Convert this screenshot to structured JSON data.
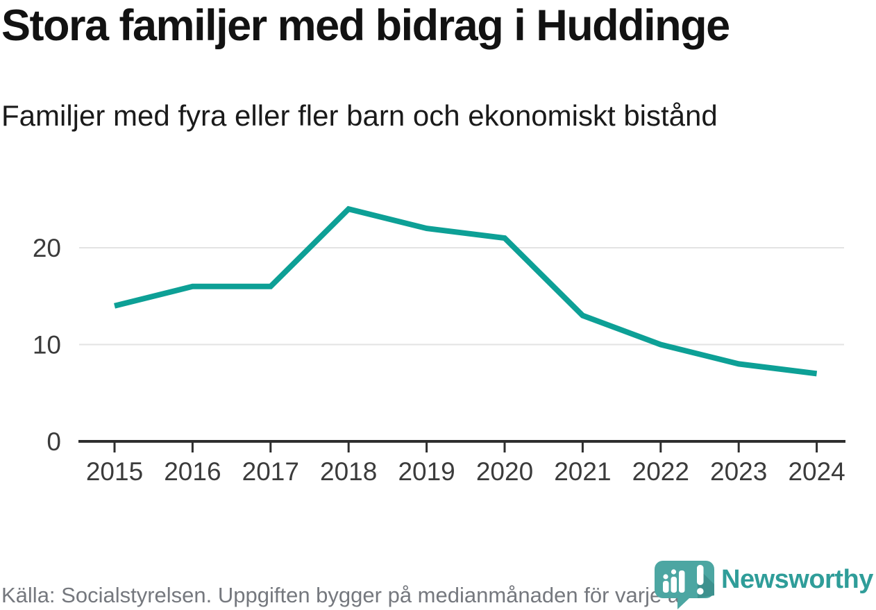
{
  "chart_data": {
    "type": "line",
    "title": "Stora familjer med bidrag i Huddinge",
    "subtitle": "Familjer med fyra eller fler barn och ekonomiskt bistånd",
    "source": "Källa: Socialstyrelsen. Uppgiften bygger på medianmånaden för varje år",
    "categories": [
      "2015",
      "2016",
      "2017",
      "2018",
      "2019",
      "2020",
      "2021",
      "2022",
      "2023",
      "2024"
    ],
    "values": [
      14,
      16,
      16,
      24,
      22,
      21,
      13,
      10,
      8,
      7
    ],
    "xlabel": "",
    "ylabel": "",
    "yticks": [
      0,
      10,
      20
    ],
    "ylim": [
      0,
      25
    ],
    "grid": "horizontal",
    "legend": "none",
    "line_color": "#0da096",
    "gridline_color": "#e3e3e3",
    "axis_color": "#2e2e2e",
    "tick_label_color": "#3b3b3b"
  },
  "logo": {
    "wordmark": "Newsworthy",
    "icon": "newsworthy-bubble-barchart-icon",
    "wordmark_color": "#2f9d99",
    "icon_color": "#4ca6a2"
  }
}
